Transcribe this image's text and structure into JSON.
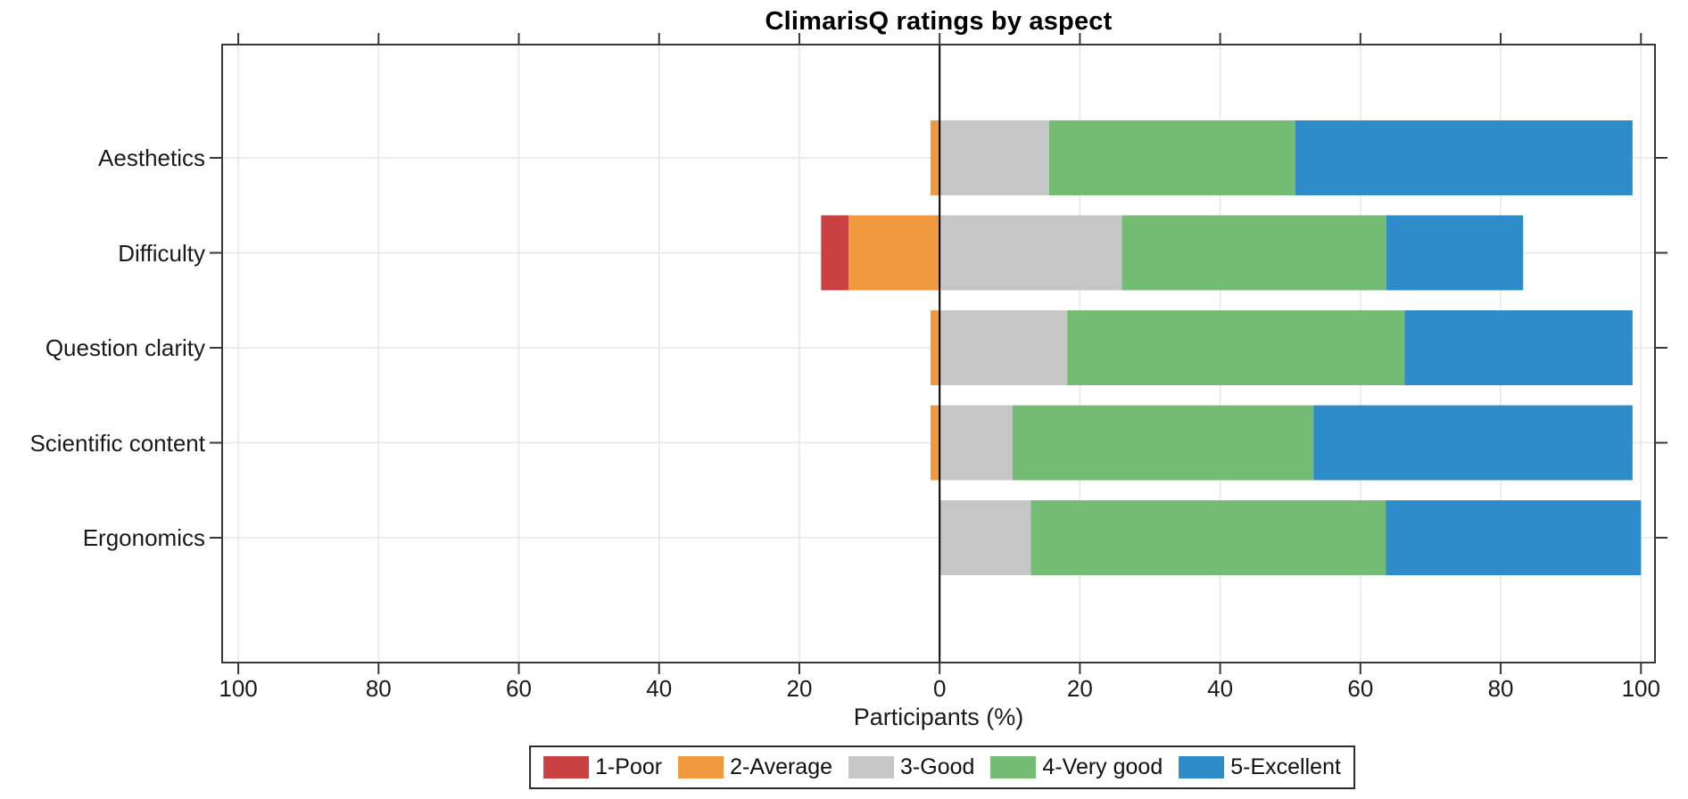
{
  "chart_data": {
    "type": "bar",
    "subtype": "horizontal-diverging-stacked-likert",
    "title": "ClimarisQ ratings by aspect",
    "xlabel": "Participants (%)",
    "ylabel": "",
    "categories": [
      "Aesthetics",
      "Difficulty",
      "Question clarity",
      "Scientific content",
      "Ergonomics"
    ],
    "series": [
      {
        "name": "1-Poor",
        "color": "#ca4142",
        "values": [
          0,
          3.9,
          0,
          0,
          0
        ]
      },
      {
        "name": "2-Average",
        "color": "#f0993f",
        "values": [
          1.3,
          13.0,
          1.3,
          1.3,
          0
        ]
      },
      {
        "name": "3-Good",
        "color": "#c6c6c6",
        "values": [
          15.6,
          26.0,
          18.2,
          10.4,
          13.0
        ]
      },
      {
        "name": "4-Very good",
        "color": "#74bb74",
        "values": [
          35.1,
          37.7,
          48.1,
          42.9,
          50.6
        ]
      },
      {
        "name": "5-Excellent",
        "color": "#2e8cc9",
        "values": [
          48.1,
          19.5,
          32.5,
          45.5,
          36.4
        ]
      }
    ],
    "negative_series": [
      "1-Poor",
      "2-Average"
    ],
    "xlim": [
      -102.3,
      102.0
    ],
    "x_ticks": [
      -100,
      -80,
      -60,
      -40,
      -20,
      0,
      20,
      40,
      60,
      80,
      100
    ],
    "x_tick_labels": [
      "100",
      "80",
      "60",
      "40",
      "20",
      "0",
      "20",
      "40",
      "60",
      "80",
      "100"
    ],
    "grid": true,
    "zero_line": true,
    "legend_position": "bottom",
    "colors": {
      "axis": "#383838",
      "gridline": "#e7e7e7",
      "zero_line": "#000000",
      "background": "#ffffff",
      "text": "#1a1a1a"
    }
  }
}
